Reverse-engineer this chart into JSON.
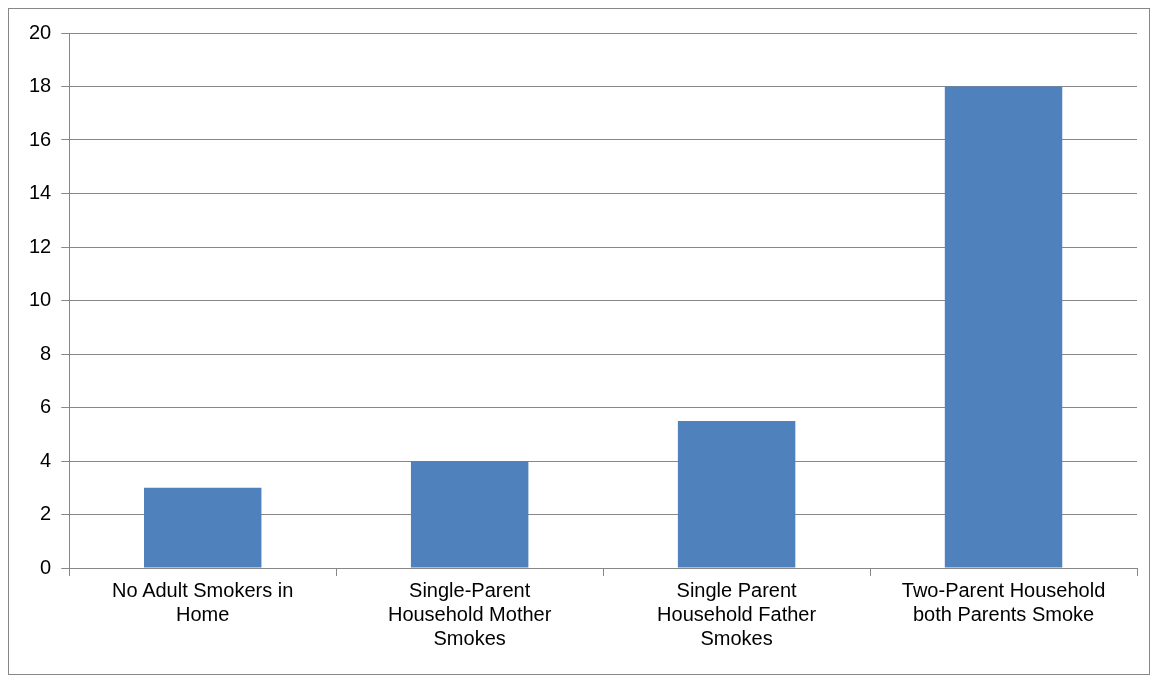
{
  "chart_data": {
    "type": "bar",
    "categories": [
      "No Adult Smokers in Home",
      "Single-Parent Household Mother Smokes",
      "Single Parent Household Father Smokes",
      "Two-Parent Household both Parents Smoke"
    ],
    "values": [
      3,
      4,
      5.5,
      18
    ],
    "color": "#4f81bd",
    "ylim": [
      0,
      20
    ],
    "yticks": [
      0,
      2,
      4,
      6,
      8,
      10,
      12,
      14,
      16,
      18,
      20
    ],
    "grid": "y",
    "legend": false
  }
}
